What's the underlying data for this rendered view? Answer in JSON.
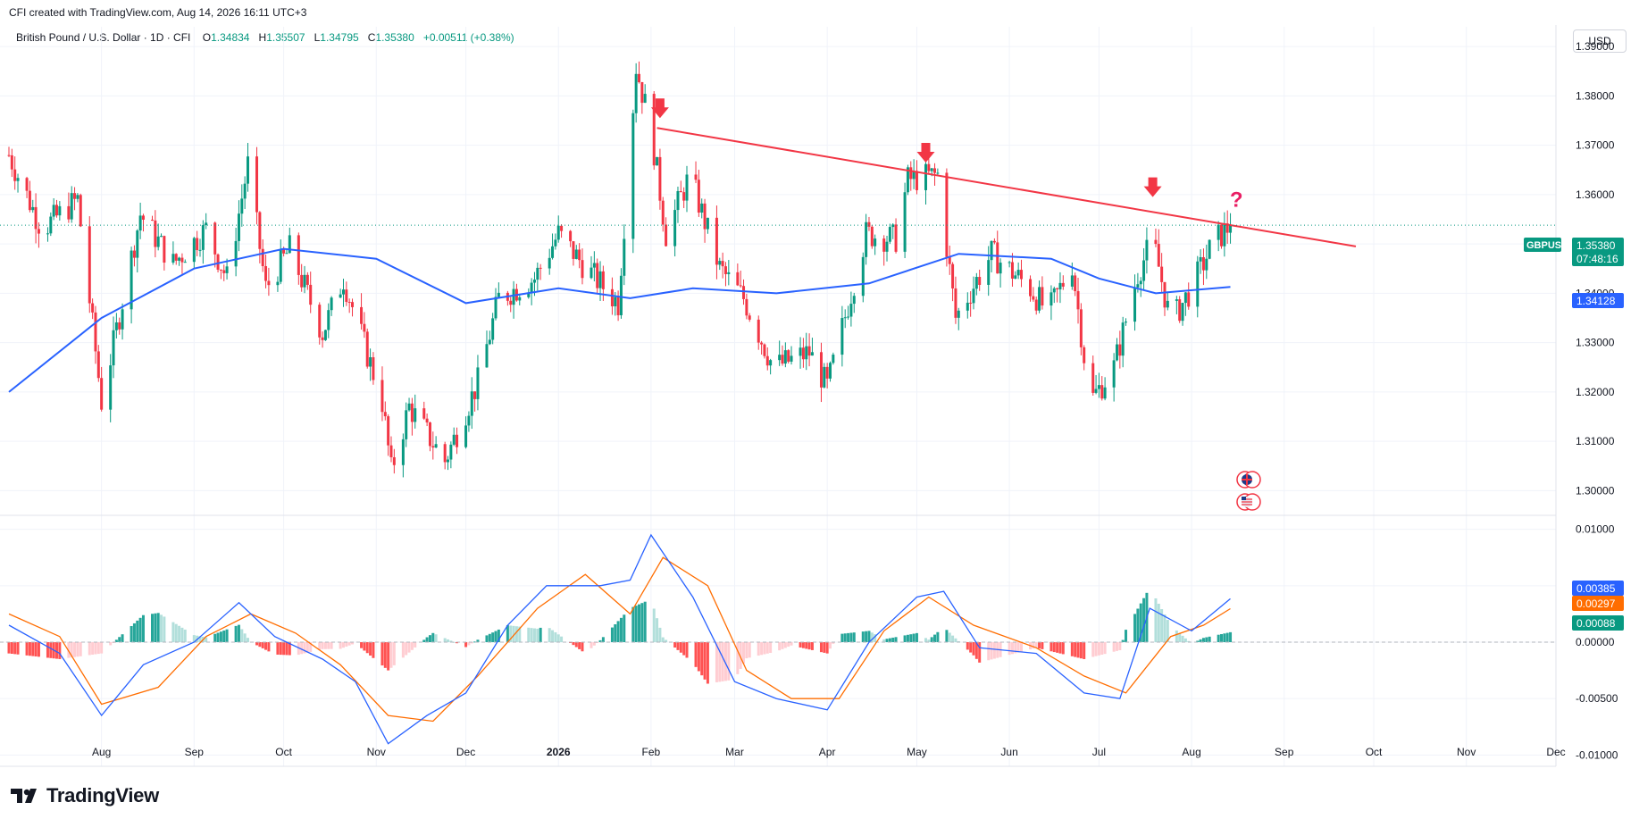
{
  "header": {
    "created_text": "CFI created with TradingView.com, Aug 14, 2026 16:11 UTC+3"
  },
  "legend": {
    "title": "British Pound / U.S. Dollar · 1D · CFI",
    "o_label": "O",
    "o_value": "1.34834",
    "h_label": "H",
    "h_value": "1.35507",
    "l_label": "L",
    "l_value": "1.34795",
    "c_label": "C",
    "c_value": "1.35380",
    "change": "+0.00511 (+0.38%)"
  },
  "currency_button": "USD",
  "symbol_badge": {
    "symbol": "GBPUSD",
    "price": "1.35380",
    "countdown": "07:48:16"
  },
  "ma_badge": "1.34128",
  "macd_badges": {
    "macd": "0.00385",
    "signal": "0.00297",
    "histogram": "0.00088"
  },
  "annotation_question": "?",
  "branding": "TradingView",
  "colors": {
    "up": "#089981",
    "down": "#f23645",
    "ma": "#2962ff",
    "macd": "#2962ff",
    "signal": "#ff6d00",
    "trendline": "#f23645",
    "hist_up_strong": "#26a69a",
    "hist_up_weak": "#b2dfdb",
    "hist_down_strong": "#ff5252",
    "hist_down_weak": "#ffcdd2"
  },
  "chart_data": [
    {
      "type": "candlestick",
      "title": "British Pound / U.S. Dollar · 1D · CFI",
      "ylim": [
        1.295,
        1.394
      ],
      "y_ticks": [
        "1.39000",
        "1.38000",
        "1.37000",
        "1.36000",
        "1.35000",
        "1.34000",
        "1.33000",
        "1.32000",
        "1.31000",
        "1.30000"
      ],
      "x_ticks": [
        "Aug",
        "Sep",
        "Oct",
        "Nov",
        "Dec",
        "2026",
        "Feb",
        "Mar",
        "Apr",
        "May",
        "Jun",
        "Jul",
        "Aug",
        "Sep",
        "Oct",
        "Nov",
        "Dec"
      ],
      "x_tick_dates": [
        "2025-08-01",
        "2025-09-01",
        "2025-10-01",
        "2025-11-01",
        "2025-12-01",
        "2026-01-01",
        "2026-02-01",
        "2026-03-01",
        "2026-04-01",
        "2026-05-01",
        "2026-06-01",
        "2026-07-01",
        "2026-08-01",
        "2026-09-01",
        "2026-10-01",
        "2026-11-01",
        "2026-12-01"
      ],
      "x_range": [
        "2025-07-01",
        "2026-12-01"
      ],
      "close_path": [
        [
          "2025-07-01",
          1.368
        ],
        [
          "2025-07-12",
          1.353
        ],
        [
          "2025-07-24",
          1.359
        ],
        [
          "2025-08-01",
          1.318
        ],
        [
          "2025-08-14",
          1.356
        ],
        [
          "2025-08-25",
          1.346
        ],
        [
          "2025-09-05",
          1.353
        ],
        [
          "2025-09-12",
          1.343
        ],
        [
          "2025-09-19",
          1.366
        ],
        [
          "2025-09-25",
          1.341
        ],
        [
          "2025-10-03",
          1.349
        ],
        [
          "2025-10-14",
          1.332
        ],
        [
          "2025-10-21",
          1.343
        ],
        [
          "2025-11-03",
          1.318
        ],
        [
          "2025-11-06",
          1.304
        ],
        [
          "2025-11-12",
          1.317
        ],
        [
          "2025-11-24",
          1.306
        ],
        [
          "2025-12-05",
          1.322
        ],
        [
          "2025-12-12",
          1.339
        ],
        [
          "2025-12-24",
          1.343
        ],
        [
          "2026-01-01",
          1.352
        ],
        [
          "2026-01-09",
          1.346
        ],
        [
          "2026-01-21",
          1.338
        ],
        [
          "2026-01-27",
          1.386
        ],
        [
          "2026-02-01",
          1.373
        ],
        [
          "2026-02-06",
          1.352
        ],
        [
          "2026-02-14",
          1.364
        ],
        [
          "2026-02-24",
          1.345
        ],
        [
          "2026-03-04",
          1.339
        ],
        [
          "2026-03-14",
          1.325
        ],
        [
          "2026-03-26",
          1.328
        ],
        [
          "2026-04-01",
          1.321
        ],
        [
          "2026-04-14",
          1.352
        ],
        [
          "2026-04-24",
          1.351
        ],
        [
          "2026-04-28",
          1.363
        ],
        [
          "2026-05-08",
          1.364
        ],
        [
          "2026-05-14",
          1.335
        ],
        [
          "2026-05-26",
          1.348
        ],
        [
          "2026-06-08",
          1.341
        ],
        [
          "2026-06-14",
          1.336
        ],
        [
          "2026-06-22",
          1.346
        ],
        [
          "2026-06-28",
          1.318
        ],
        [
          "2026-07-06",
          1.325
        ],
        [
          "2026-07-14",
          1.344
        ],
        [
          "2026-07-19",
          1.351
        ],
        [
          "2026-07-25",
          1.334
        ],
        [
          "2026-08-01",
          1.341
        ],
        [
          "2026-08-08",
          1.35
        ],
        [
          "2026-08-14",
          1.3538
        ]
      ],
      "moving_average": [
        [
          "2025-07-01",
          1.32
        ],
        [
          "2025-08-01",
          1.335
        ],
        [
          "2025-09-01",
          1.345
        ],
        [
          "2025-10-01",
          1.349
        ],
        [
          "2025-11-01",
          1.347
        ],
        [
          "2025-12-01",
          1.338
        ],
        [
          "2026-01-01",
          1.341
        ],
        [
          "2026-01-25",
          1.339
        ],
        [
          "2026-02-15",
          1.341
        ],
        [
          "2026-03-15",
          1.34
        ],
        [
          "2026-04-15",
          1.342
        ],
        [
          "2026-05-15",
          1.348
        ],
        [
          "2026-06-15",
          1.347
        ],
        [
          "2026-07-01",
          1.343
        ],
        [
          "2026-07-20",
          1.34
        ],
        [
          "2026-08-14",
          1.3413
        ]
      ],
      "trendline": [
        [
          "2026-02-03",
          1.3735
        ],
        [
          "2026-09-25",
          1.3495
        ]
      ],
      "markers": [
        {
          "date": "2026-02-04",
          "price": 1.3755,
          "shape": "down-arrow"
        },
        {
          "date": "2026-05-04",
          "price": 1.3665,
          "shape": "down-arrow"
        },
        {
          "date": "2026-07-19",
          "price": 1.3595,
          "shape": "down-arrow"
        },
        {
          "date": "2026-08-16",
          "price": 1.3575,
          "shape": "question"
        }
      ],
      "last_close": 1.3538,
      "ma_last": 1.34128
    },
    {
      "type": "macd",
      "ylim": [
        -0.011,
        0.011
      ],
      "y_ticks": [
        "0.01000",
        "0.00500",
        "0.00000",
        "-0.00500",
        "-0.01000"
      ],
      "macd_line": [
        [
          "2025-07-01",
          0.0015
        ],
        [
          "2025-07-18",
          -0.001
        ],
        [
          "2025-08-01",
          -0.0065
        ],
        [
          "2025-08-15",
          -0.002
        ],
        [
          "2025-09-01",
          0.0
        ],
        [
          "2025-09-16",
          0.0035
        ],
        [
          "2025-09-28",
          0.0005
        ],
        [
          "2025-10-14",
          -0.0015
        ],
        [
          "2025-10-25",
          -0.0035
        ],
        [
          "2025-11-05",
          -0.009
        ],
        [
          "2025-11-18",
          -0.0065
        ],
        [
          "2025-12-01",
          -0.0045
        ],
        [
          "2025-12-15",
          0.0015
        ],
        [
          "2025-12-28",
          0.005
        ],
        [
          "2026-01-15",
          0.005
        ],
        [
          "2026-01-25",
          0.0055
        ],
        [
          "2026-02-01",
          0.0095
        ],
        [
          "2026-02-15",
          0.004
        ],
        [
          "2026-03-01",
          -0.0035
        ],
        [
          "2026-03-15",
          -0.005
        ],
        [
          "2026-04-01",
          -0.006
        ],
        [
          "2026-04-15",
          0.0
        ],
        [
          "2026-05-01",
          0.004
        ],
        [
          "2026-05-10",
          0.0045
        ],
        [
          "2026-05-22",
          -0.0005
        ],
        [
          "2026-06-10",
          -0.001
        ],
        [
          "2026-06-26",
          -0.0045
        ],
        [
          "2026-07-08",
          -0.005
        ],
        [
          "2026-07-18",
          0.003
        ],
        [
          "2026-08-01",
          0.001
        ],
        [
          "2026-08-14",
          0.00385
        ]
      ],
      "signal_line": [
        [
          "2025-07-01",
          0.0025
        ],
        [
          "2025-07-18",
          0.0005
        ],
        [
          "2025-08-01",
          -0.0055
        ],
        [
          "2025-08-20",
          -0.004
        ],
        [
          "2025-09-05",
          0.0005
        ],
        [
          "2025-09-20",
          0.0025
        ],
        [
          "2025-10-05",
          0.0008
        ],
        [
          "2025-10-20",
          -0.002
        ],
        [
          "2025-11-05",
          -0.0065
        ],
        [
          "2025-11-20",
          -0.007
        ],
        [
          "2025-12-05",
          -0.003
        ],
        [
          "2025-12-25",
          0.003
        ],
        [
          "2026-01-10",
          0.006
        ],
        [
          "2026-01-25",
          0.0025
        ],
        [
          "2026-02-05",
          0.0075
        ],
        [
          "2026-02-20",
          0.005
        ],
        [
          "2026-03-05",
          -0.0025
        ],
        [
          "2026-03-20",
          -0.005
        ],
        [
          "2026-04-05",
          -0.005
        ],
        [
          "2026-04-20",
          0.001
        ],
        [
          "2026-05-05",
          0.004
        ],
        [
          "2026-05-20",
          0.0015
        ],
        [
          "2026-06-10",
          -0.0005
        ],
        [
          "2026-06-26",
          -0.003
        ],
        [
          "2026-07-10",
          -0.0045
        ],
        [
          "2026-07-25",
          0.0005
        ],
        [
          "2026-08-05",
          0.0015
        ],
        [
          "2026-08-14",
          0.00297
        ]
      ],
      "histogram_last": 0.00088
    }
  ]
}
